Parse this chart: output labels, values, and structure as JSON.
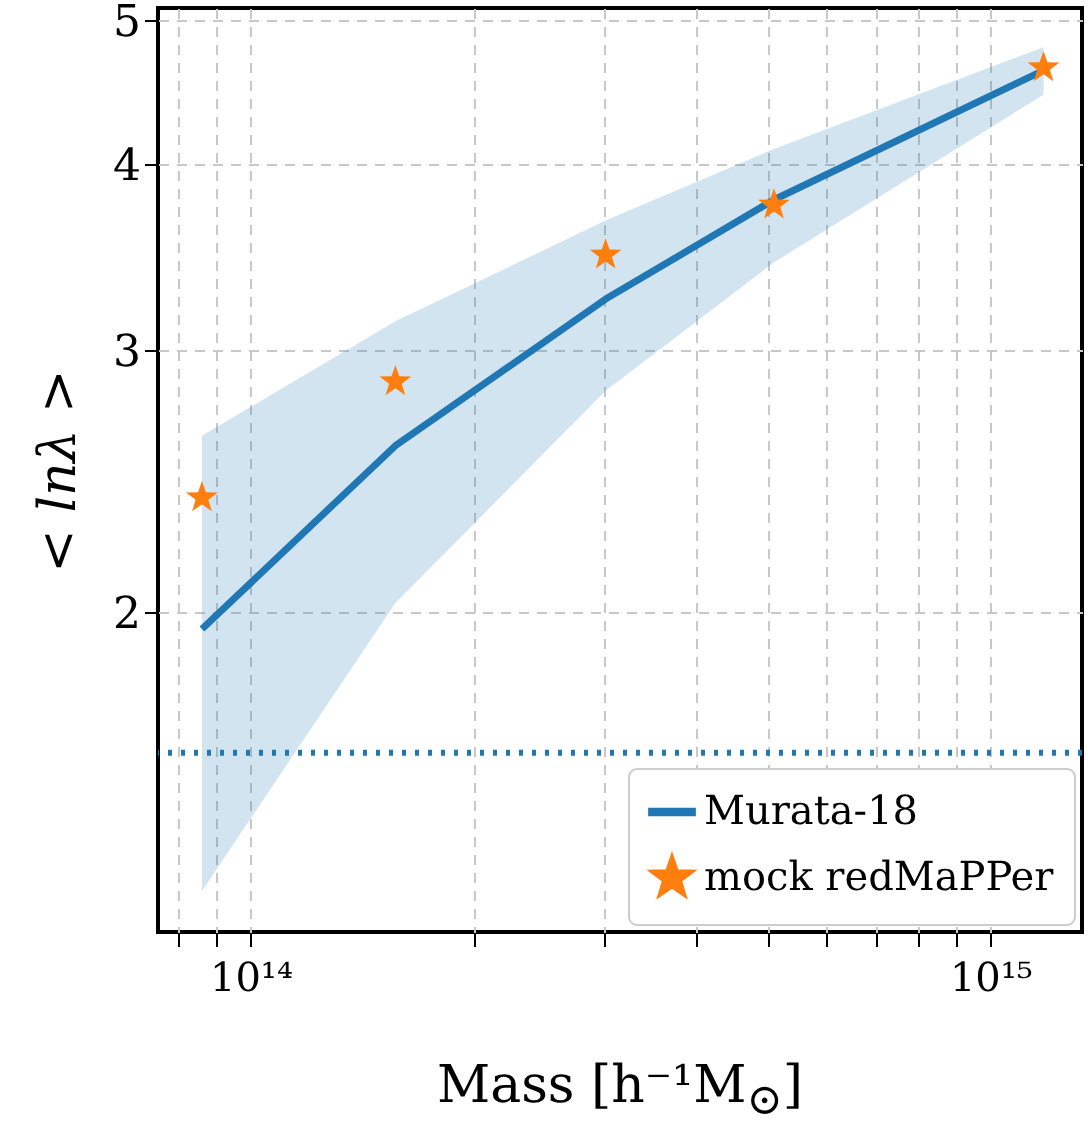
{
  "chart_data": {
    "type": "line",
    "xlabel": "Mass [h⁻¹M$_{⊙}$]",
    "ylabel": "< lnλ >",
    "x": [
      86000000000000.0,
      157000000000000.0,
      302000000000000.0,
      510000000000000.0,
      1180000000000000.0
    ],
    "series": [
      {
        "name": "Murata-18",
        "color": "#1f77b4",
        "values": [
          1.95,
          2.59,
          3.25,
          3.79,
          4.63
        ],
        "lower": [
          1.3,
          2.03,
          2.82,
          3.44,
          4.46
        ],
        "upper": [
          2.63,
          3.14,
          3.67,
          4.1,
          4.8
        ]
      },
      {
        "name": "mock redMaPPer",
        "type": "scatter",
        "color": "#ff7f0e",
        "marker": "star",
        "values": [
          2.39,
          2.86,
          3.48,
          3.76,
          4.65
        ]
      }
    ],
    "xlim": [
      75000000000000.0,
      1330000000000000.0
    ],
    "xticks": [
      {
        "value": 80000000000000.0,
        "label": null
      },
      {
        "value": 90000000000000.0,
        "label": null
      },
      {
        "value": 100000000000000.0,
        "label": "10¹⁴"
      },
      {
        "value": 200000000000000.0,
        "label": null
      },
      {
        "value": 300000000000000.0,
        "label": null
      },
      {
        "value": 400000000000000.0,
        "label": null
      },
      {
        "value": 500000000000000.0,
        "label": null
      },
      {
        "value": 600000000000000.0,
        "label": null
      },
      {
        "value": 700000000000000.0,
        "label": null
      },
      {
        "value": 800000000000000.0,
        "label": null
      },
      {
        "value": 900000000000000.0,
        "label": null
      },
      {
        "value": 1000000000000000.0,
        "label": "10¹⁵"
      }
    ],
    "ylim": [
      1.22,
      5.1
    ],
    "yticks": [
      2,
      3,
      4,
      5
    ],
    "ref_lines": [
      {
        "axis": "y",
        "value": 1.61,
        "color": "#1f77b4",
        "line_style": "dotted"
      }
    ],
    "log": "xy",
    "grid": true,
    "legend": "bottom right"
  }
}
